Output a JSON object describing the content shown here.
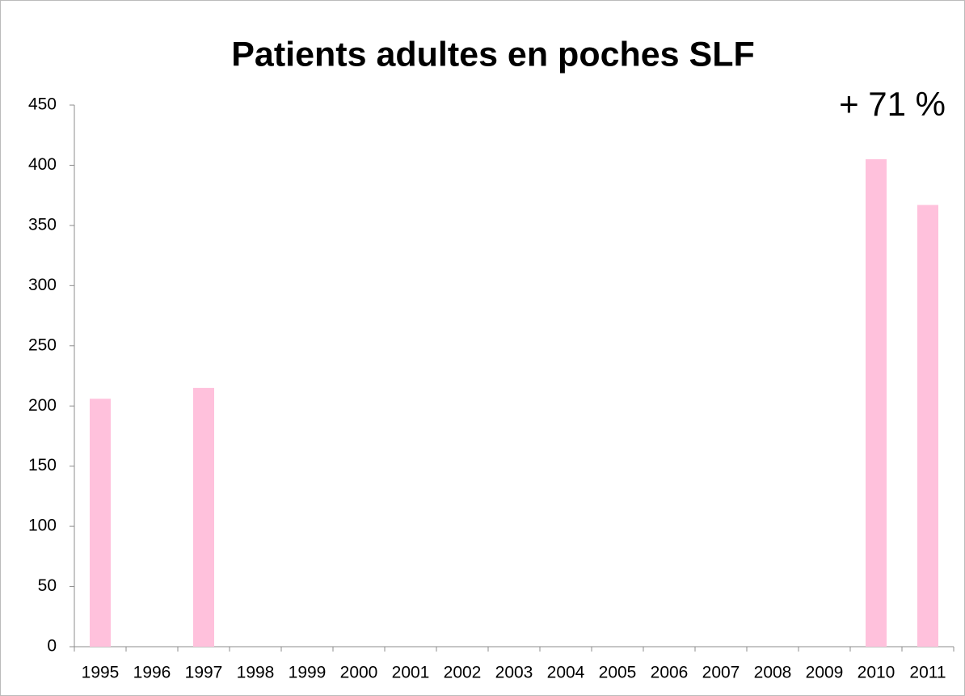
{
  "chart_data": {
    "type": "bar",
    "title": "Patients adultes en poches SLF",
    "annotation": "+ 71 %",
    "categories": [
      "1995",
      "1996",
      "1997",
      "1998",
      "1999",
      "2000",
      "2001",
      "2002",
      "2003",
      "2004",
      "2005",
      "2006",
      "2007",
      "2008",
      "2009",
      "2010",
      "2011"
    ],
    "values": [
      206,
      null,
      215,
      null,
      null,
      null,
      null,
      null,
      null,
      null,
      null,
      null,
      null,
      null,
      null,
      405,
      367
    ],
    "color": "#ffc1dc",
    "ylim": [
      0,
      450
    ],
    "yticks": [
      0,
      50,
      100,
      150,
      200,
      250,
      300,
      350,
      400,
      450
    ],
    "grid": false
  }
}
